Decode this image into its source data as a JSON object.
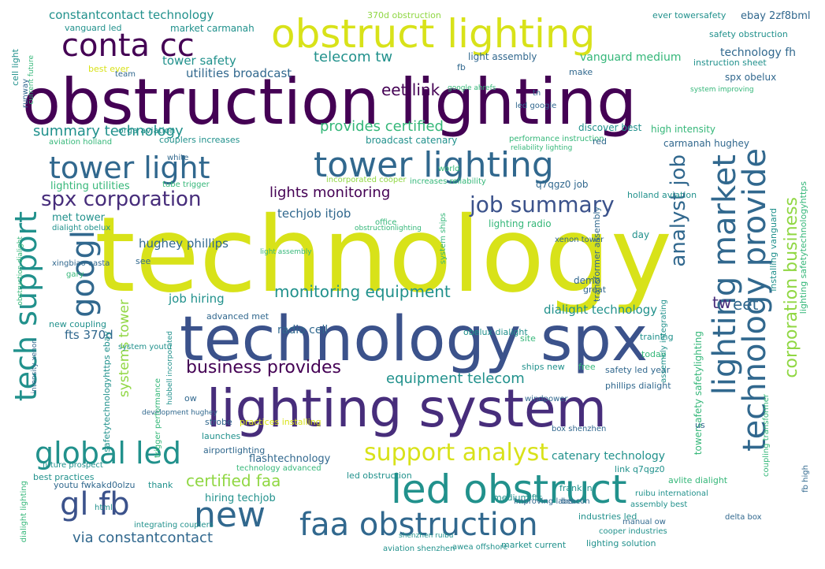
{
  "palette": {
    "dark_purple": "#440154",
    "indigo": "#3b528b",
    "blue": "#31688e",
    "teal": "#21918c",
    "green": "#35b779",
    "lime": "#90d743",
    "yellow": "#d8e219",
    "light_teal": "#5ec962",
    "violet": "#472d7b"
  },
  "words": [
    {
      "text": "technology",
      "color": "#d8e219"
    },
    {
      "text": "obstruction lighting",
      "color": "#440154"
    },
    {
      "text": "technology spx",
      "color": "#3b528b"
    },
    {
      "text": "lighting system",
      "color": "#472d7b"
    },
    {
      "text": "obstruct lighting",
      "color": "#d8e219"
    },
    {
      "text": "led obstruct",
      "color": "#21918c"
    },
    {
      "text": "faa obstruction",
      "color": "#31688e"
    },
    {
      "text": "tower light",
      "color": "#31688e"
    },
    {
      "text": "tower lighting",
      "color": "#31688e"
    },
    {
      "text": "conta cc",
      "color": "#440154"
    },
    {
      "text": "global led",
      "color": "#21918c"
    },
    {
      "text": "gl fb",
      "color": "#3b528b"
    },
    {
      "text": "new",
      "color": "#31688e"
    },
    {
      "text": "googl",
      "color": "#31688e"
    },
    {
      "text": "tech support",
      "color": "#21918c"
    },
    {
      "text": "lighting market",
      "color": "#31688e"
    },
    {
      "text": "technology provide",
      "color": "#31688e"
    },
    {
      "text": "support analyst",
      "color": "#d8e219"
    },
    {
      "text": "spx corporation",
      "color": "#472d7b"
    },
    {
      "text": "job summary",
      "color": "#3b528b"
    },
    {
      "text": "summary technology",
      "color": "#21918c"
    },
    {
      "text": "provides certified",
      "color": "#35b779"
    },
    {
      "text": "analyst job",
      "color": "#31688e"
    },
    {
      "text": "corporation business",
      "color": "#90d743"
    },
    {
      "text": "business provides",
      "color": "#440154"
    },
    {
      "text": "monitoring equipment",
      "color": "#21918c"
    },
    {
      "text": "equipment telecom",
      "color": "#21918c"
    },
    {
      "text": "certified faa",
      "color": "#90d743"
    },
    {
      "text": "via constantcontact",
      "color": "#31688e"
    },
    {
      "text": "lights monitoring",
      "color": "#440154"
    },
    {
      "text": "eet link",
      "color": "#440154"
    },
    {
      "text": "telecom tw",
      "color": "#21918c"
    },
    {
      "text": "constantcontact technology",
      "color": "#21918c"
    },
    {
      "text": "tower safety",
      "color": "#21918c"
    },
    {
      "text": "utilities broadcast",
      "color": "#31688e"
    },
    {
      "text": "systems tower",
      "color": "#90d743"
    },
    {
      "text": "techjob itjob",
      "color": "#31688e"
    },
    {
      "text": "hughey phillips",
      "color": "#31688e"
    },
    {
      "text": "job hiring",
      "color": "#21918c"
    },
    {
      "text": "dialight technology",
      "color": "#21918c"
    },
    {
      "text": "tw",
      "color": "#472d7b"
    },
    {
      "text": "eet",
      "color": "#31688e"
    },
    {
      "text": "catenary technology",
      "color": "#21918c"
    },
    {
      "text": "lighting utilities",
      "color": "#35b779"
    },
    {
      "text": "met tower",
      "color": "#21918c"
    },
    {
      "text": "fts 370d",
      "color": "#31688e"
    },
    {
      "text": "radio cell",
      "color": "#31688e"
    },
    {
      "text": "technology fh",
      "color": "#31688e"
    },
    {
      "text": "vanguard medium",
      "color": "#35b779"
    },
    {
      "text": "light assembly",
      "color": "#31688e"
    },
    {
      "text": "hiring techjob",
      "color": "#21918c"
    },
    {
      "text": "flashtechnology",
      "color": "#31688e"
    },
    {
      "text": "lighting radio",
      "color": "#35b779"
    },
    {
      "text": "broadcast catenary",
      "color": "#21918c"
    },
    {
      "text": "vanguard led",
      "color": "#21918c"
    },
    {
      "text": "market carmanah",
      "color": "#21918c"
    },
    {
      "text": "safety obstruction",
      "color": "#21918c"
    },
    {
      "text": "ebay 2zf8bml",
      "color": "#31688e"
    },
    {
      "text": "ever towersafety",
      "color": "#21918c"
    },
    {
      "text": "370d obstruction",
      "color": "#90d743"
    },
    {
      "text": "instruction sheet",
      "color": "#21918c"
    },
    {
      "text": "spx obelux",
      "color": "#31688e"
    },
    {
      "text": "discover best",
      "color": "#21918c"
    },
    {
      "text": "high intensity",
      "color": "#35b779"
    },
    {
      "text": "carmanah hughey",
      "color": "#31688e"
    },
    {
      "text": "performance instruction",
      "color": "#35b779"
    },
    {
      "text": "orga aviation",
      "color": "#21918c"
    },
    {
      "text": "couplers increases",
      "color": "#21918c"
    },
    {
      "text": "aviation holland",
      "color": "#35b779"
    },
    {
      "text": "cell light",
      "color": "#21918c"
    },
    {
      "text": "q7qgz0 job",
      "color": "#31688e"
    },
    {
      "text": "holland aviation",
      "color": "#21918c"
    },
    {
      "text": "increases reliability",
      "color": "#35b779"
    },
    {
      "text": "incorporated cooper",
      "color": "#90d743"
    },
    {
      "text": "dialight obelux",
      "color": "#21918c"
    },
    {
      "text": "tube trigger",
      "color": "#35b779"
    },
    {
      "text": "lighting safetytechnologyhttps",
      "color": "#35b779"
    },
    {
      "text": "installing vanguard",
      "color": "#21918c"
    },
    {
      "text": "towersafety safetylighting",
      "color": "#35b779"
    },
    {
      "text": "transformer assembly",
      "color": "#31688e"
    },
    {
      "text": "demo",
      "color": "#31688e"
    },
    {
      "text": "great",
      "color": "#31688e"
    },
    {
      "text": "obelux dialight",
      "color": "#21918c"
    },
    {
      "text": "advanced met",
      "color": "#31688e"
    },
    {
      "text": "new coupling",
      "color": "#21918c"
    },
    {
      "text": "system youtu",
      "color": "#21918c"
    },
    {
      "text": "safetytechnologyhttps ebay",
      "color": "#21918c"
    },
    {
      "text": "strobe",
      "color": "#31688e"
    },
    {
      "text": "practices installing",
      "color": "#d8e219"
    },
    {
      "text": "windpower",
      "color": "#31688e"
    },
    {
      "text": "launches",
      "color": "#21918c"
    },
    {
      "text": "safety led year",
      "color": "#31688e"
    },
    {
      "text": "phillips dialight",
      "color": "#31688e"
    },
    {
      "text": "airportlighting",
      "color": "#31688e"
    },
    {
      "text": "technology advanced",
      "color": "#35b779"
    },
    {
      "text": "led obstruction",
      "color": "#21918c"
    },
    {
      "text": "link q7qgz0",
      "color": "#21918c"
    },
    {
      "text": "avlite dialight",
      "color": "#35b779"
    },
    {
      "text": "ruibu international",
      "color": "#21918c"
    },
    {
      "text": "assembly best",
      "color": "#21918c"
    },
    {
      "text": "best practices",
      "color": "#21918c"
    },
    {
      "text": "future prospect",
      "color": "#21918c"
    },
    {
      "text": "development hughey",
      "color": "#31688e"
    },
    {
      "text": "youtu fwkakd0olzu",
      "color": "#31688e"
    },
    {
      "text": "thank",
      "color": "#21918c"
    },
    {
      "text": "medium fts",
      "color": "#21918c"
    },
    {
      "text": "franklin",
      "color": "#21918c"
    },
    {
      "text": "improving labe",
      "color": "#31688e"
    },
    {
      "text": "beacon",
      "color": "#31688e"
    },
    {
      "text": "integrating couplers",
      "color": "#21918c"
    },
    {
      "text": "industries led",
      "color": "#21918c"
    },
    {
      "text": "manual ow",
      "color": "#31688e"
    },
    {
      "text": "cooper industries",
      "color": "#21918c"
    },
    {
      "text": "lighting solution",
      "color": "#21918c"
    },
    {
      "text": "market current",
      "color": "#21918c"
    },
    {
      "text": "awea offshore",
      "color": "#21918c"
    },
    {
      "text": "aviation shenzhen",
      "color": "#21918c"
    },
    {
      "text": "shenzhen ruibu",
      "color": "#21918c"
    },
    {
      "text": "ships new",
      "color": "#21918c"
    },
    {
      "text": "free",
      "color": "#35b779"
    },
    {
      "text": "today",
      "color": "#35b779"
    },
    {
      "text": "site",
      "color": "#35b779"
    },
    {
      "text": "training",
      "color": "#21918c"
    },
    {
      "text": "us",
      "color": "#31688e"
    },
    {
      "text": "day",
      "color": "#21918c"
    },
    {
      "text": "ow",
      "color": "#31688e"
    },
    {
      "text": "office",
      "color": "#35b779"
    },
    {
      "text": "see",
      "color": "#31688e"
    },
    {
      "text": "white",
      "color": "#31688e"
    },
    {
      "text": "red",
      "color": "#31688e"
    },
    {
      "text": "make",
      "color": "#31688e"
    },
    {
      "text": "tn",
      "color": "#31688e"
    },
    {
      "text": "html",
      "color": "#21918c"
    },
    {
      "text": "fb",
      "color": "#31688e"
    },
    {
      "text": "best ever",
      "color": "#d8e219"
    },
    {
      "text": "team",
      "color": "#31688e"
    },
    {
      "text": "world",
      "color": "#35b779"
    },
    {
      "text": "system improving",
      "color": "#35b779"
    },
    {
      "text": "led google",
      "color": "#31688e"
    },
    {
      "text": "xingbiao oasta",
      "color": "#31688e"
    },
    {
      "text": "obstruction dialight",
      "color": "#35b779"
    },
    {
      "text": "dialight lighting",
      "color": "#35b779"
    },
    {
      "text": "coupling transformer",
      "color": "#35b779"
    },
    {
      "text": "system ships",
      "color": "#35b779"
    },
    {
      "text": "fb high",
      "color": "#31688e"
    },
    {
      "text": "assembly integrating",
      "color": "#21918c"
    },
    {
      "text": "runway",
      "color": "#31688e"
    },
    {
      "text": "intensity xenon",
      "color": "#31688e"
    },
    {
      "text": "xenon tower",
      "color": "#31688e"
    },
    {
      "text": "reliability lighting",
      "color": "#35b779"
    },
    {
      "text": "gary",
      "color": "#35b779"
    },
    {
      "text": "delta box",
      "color": "#31688e"
    },
    {
      "text": "box shenzhen",
      "color": "#31688e"
    },
    {
      "text": "current future",
      "color": "#35b779"
    },
    {
      "text": "trigger performance",
      "color": "#35b779"
    },
    {
      "text": "hubbell incorporated",
      "color": "#21918c"
    },
    {
      "text": "obstructionlighting",
      "color": "#35b779"
    },
    {
      "text": "light assembly",
      "color": "#35b779"
    },
    {
      "text": "google ahrefs",
      "color": "#35b779"
    }
  ]
}
